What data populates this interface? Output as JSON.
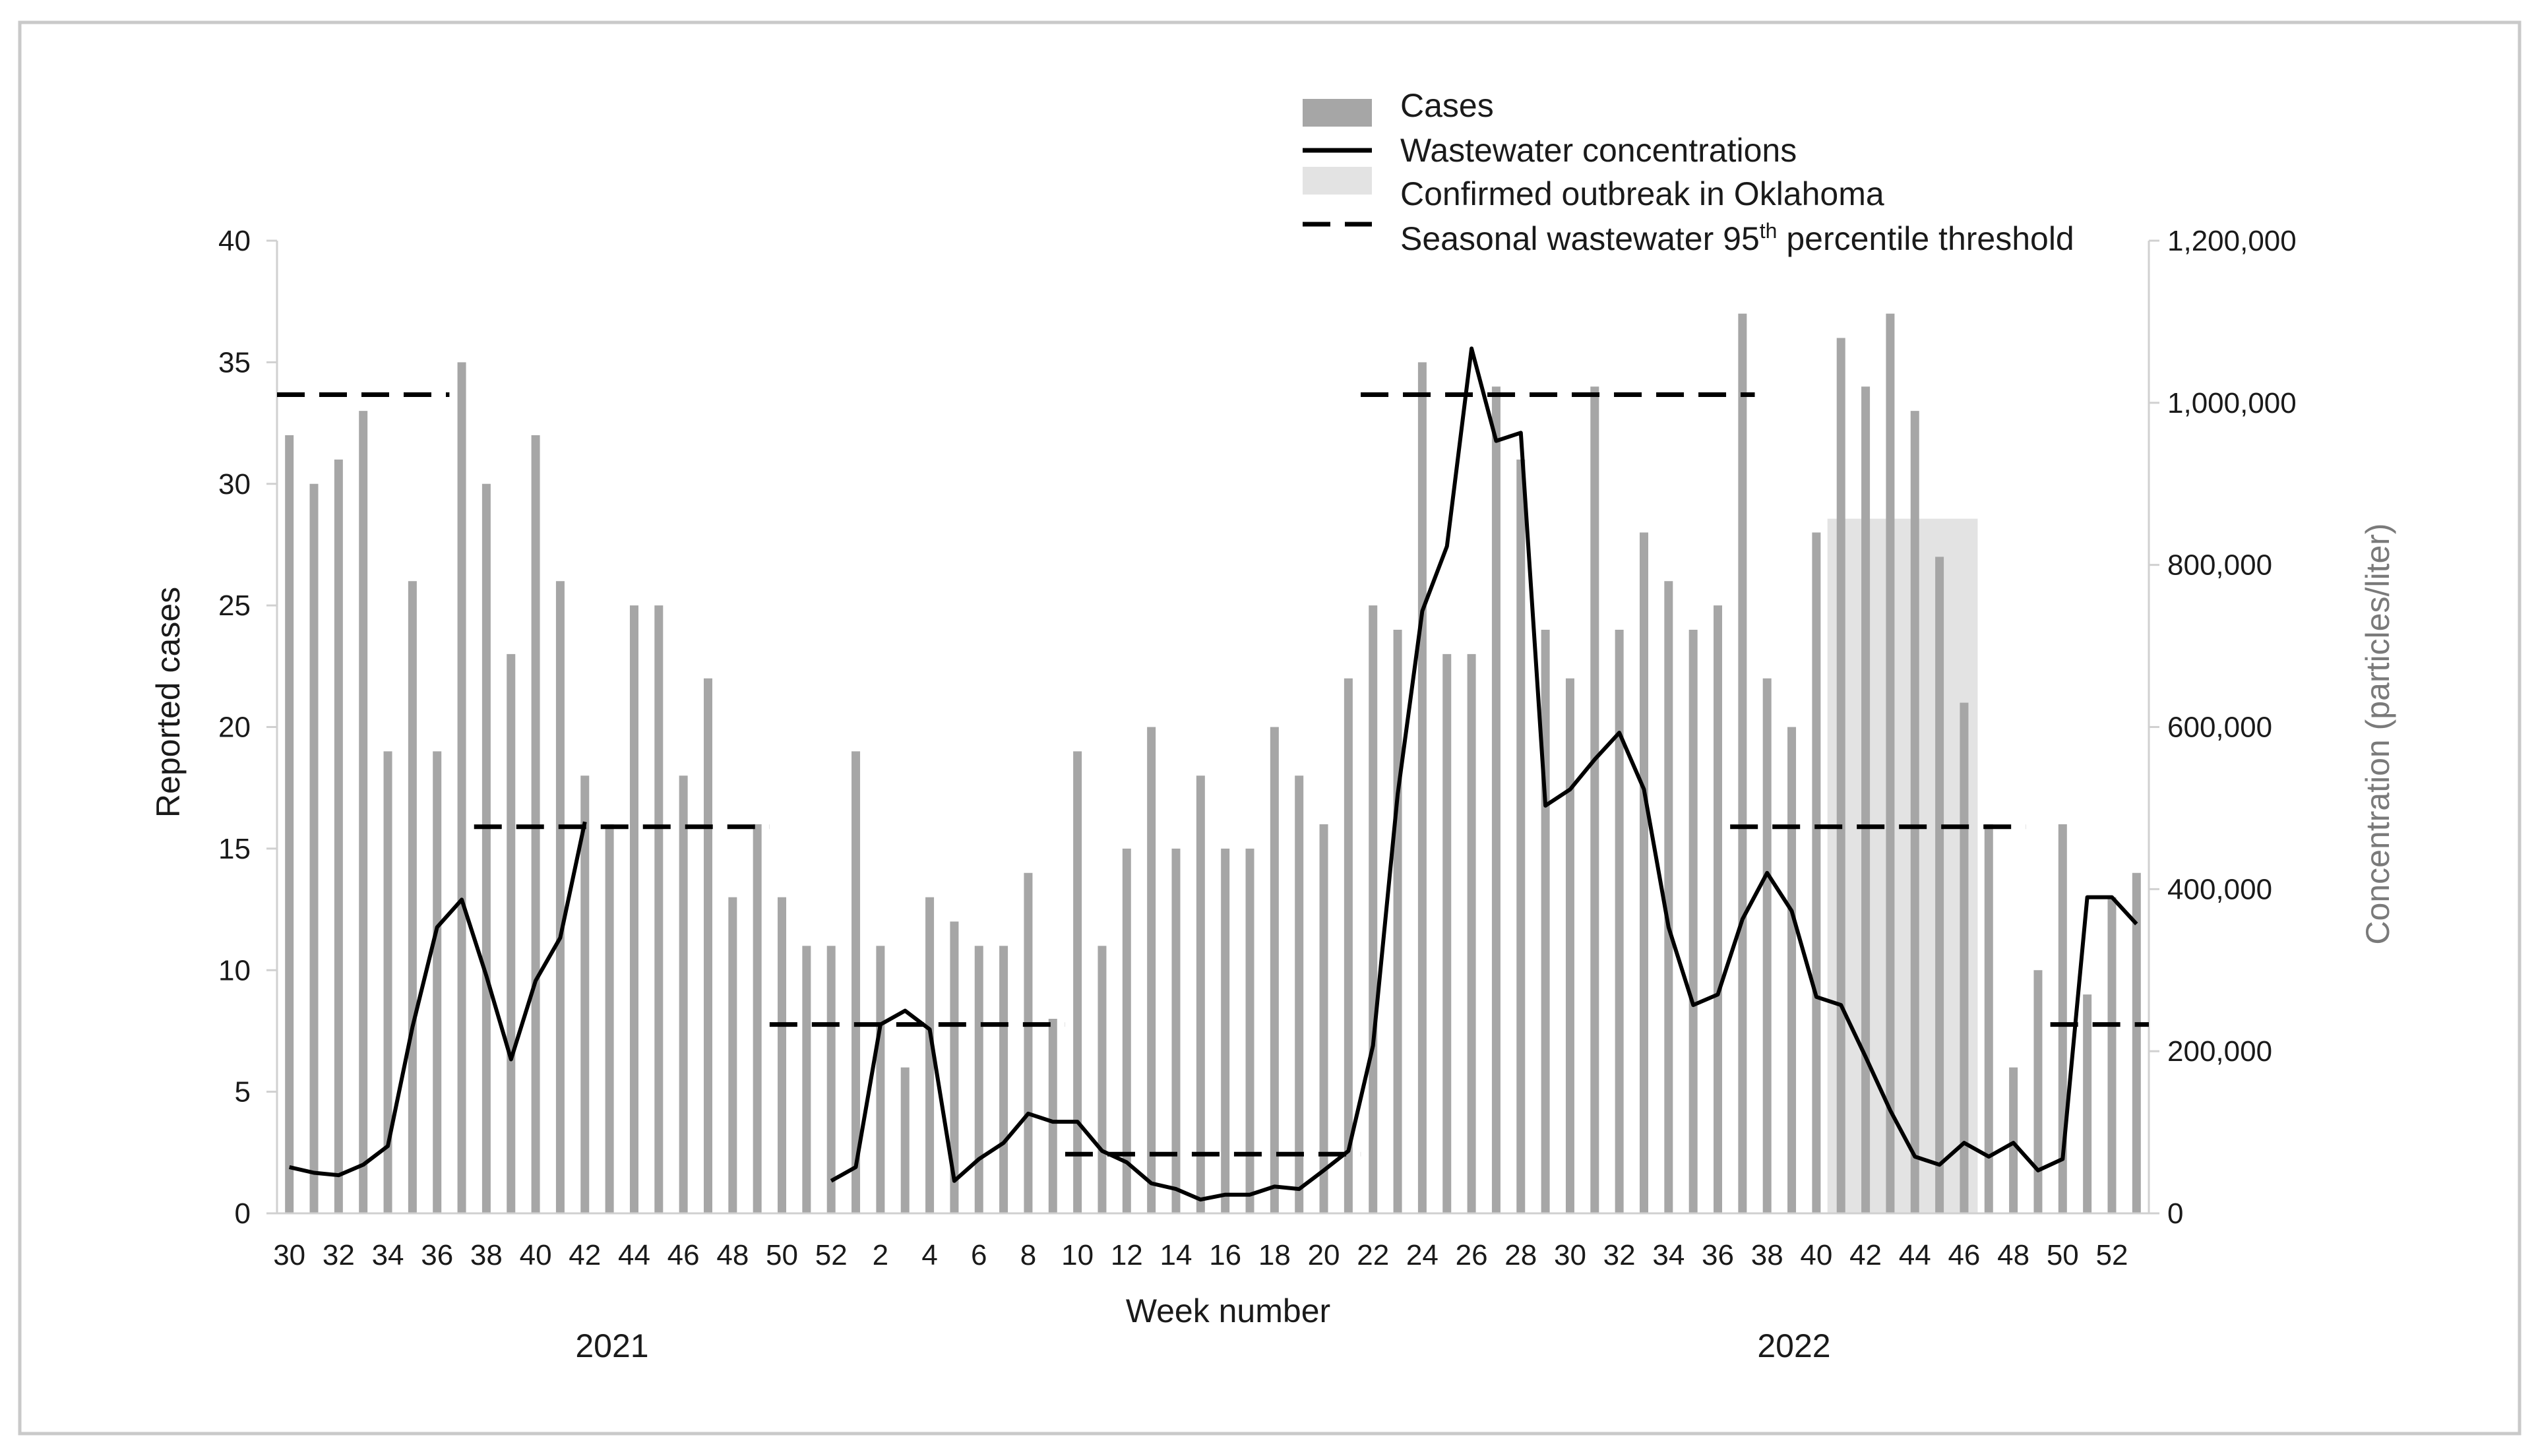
{
  "chart_data": {
    "type": "bar+line",
    "title": "",
    "xlabel": "Week number",
    "ylabel": "Reported cases",
    "y2label": "Concentration (particles/liter)",
    "ylim": [
      0,
      40
    ],
    "y2lim": [
      0,
      1200000
    ],
    "yticks": [
      "0",
      "5",
      "10",
      "15",
      "20",
      "25",
      "30",
      "35",
      "40"
    ],
    "y2ticks": [
      "0",
      "200,000",
      "400,000",
      "600,000",
      "800,000",
      "1,000,000",
      "1,200,000"
    ],
    "years": [
      "2021",
      "2022"
    ],
    "legend": {
      "cases": "Cases",
      "wastewater": "Wastewater concentrations",
      "outbreak": "Confirmed outbreak in Oklahoma",
      "threshold_prefix": "Seasonal wastewater 95",
      "threshold_sup": "th",
      "threshold_suffix": " percentile threshold"
    },
    "weeks": [
      {
        "week": 30,
        "year": 2021,
        "cases": 32,
        "conc": 57000
      },
      {
        "week": 31,
        "year": 2021,
        "cases": 30,
        "conc": 50000
      },
      {
        "week": 32,
        "year": 2021,
        "cases": 31,
        "conc": 47000
      },
      {
        "week": 33,
        "year": 2021,
        "cases": 33,
        "conc": 60000
      },
      {
        "week": 34,
        "year": 2021,
        "cases": 19,
        "conc": 83000
      },
      {
        "week": 35,
        "year": 2021,
        "cases": 26,
        "conc": 230000
      },
      {
        "week": 36,
        "year": 2021,
        "cases": 19,
        "conc": 353000
      },
      {
        "week": 37,
        "year": 2021,
        "cases": 35,
        "conc": 387000
      },
      {
        "week": 38,
        "year": 2021,
        "cases": 30,
        "conc": 293000
      },
      {
        "week": 39,
        "year": 2021,
        "cases": 23,
        "conc": 190000
      },
      {
        "week": 40,
        "year": 2021,
        "cases": 32,
        "conc": 287000
      },
      {
        "week": 41,
        "year": 2021,
        "cases": 26,
        "conc": 340000
      },
      {
        "week": 42,
        "year": 2021,
        "cases": 18,
        "conc": 483000
      },
      {
        "week": 43,
        "year": 2021,
        "cases": 16,
        "conc": null
      },
      {
        "week": 44,
        "year": 2021,
        "cases": 25,
        "conc": null
      },
      {
        "week": 45,
        "year": 2021,
        "cases": 25,
        "conc": null
      },
      {
        "week": 46,
        "year": 2021,
        "cases": 18,
        "conc": null
      },
      {
        "week": 47,
        "year": 2021,
        "cases": 22,
        "conc": null
      },
      {
        "week": 48,
        "year": 2021,
        "cases": 13,
        "conc": null
      },
      {
        "week": 49,
        "year": 2021,
        "cases": 16,
        "conc": null
      },
      {
        "week": 50,
        "year": 2021,
        "cases": 13,
        "conc": null
      },
      {
        "week": 51,
        "year": 2021,
        "cases": 11,
        "conc": null
      },
      {
        "week": 52,
        "year": 2021,
        "cases": 11,
        "conc": 40000
      },
      {
        "week": 1,
        "year": 2022,
        "cases": 19,
        "conc": 57000
      },
      {
        "week": 2,
        "year": 2022,
        "cases": 11,
        "conc": 233000
      },
      {
        "week": 3,
        "year": 2022,
        "cases": 6,
        "conc": 250000
      },
      {
        "week": 4,
        "year": 2022,
        "cases": 13,
        "conc": 227000
      },
      {
        "week": 5,
        "year": 2022,
        "cases": 12,
        "conc": 40000
      },
      {
        "week": 6,
        "year": 2022,
        "cases": 11,
        "conc": 67000
      },
      {
        "week": 7,
        "year": 2022,
        "cases": 11,
        "conc": 87000
      },
      {
        "week": 8,
        "year": 2022,
        "cases": 14,
        "conc": 123000
      },
      {
        "week": 9,
        "year": 2022,
        "cases": 8,
        "conc": 113000
      },
      {
        "week": 10,
        "year": 2022,
        "cases": 19,
        "conc": 113000
      },
      {
        "week": 11,
        "year": 2022,
        "cases": 11,
        "conc": 77000
      },
      {
        "week": 12,
        "year": 2022,
        "cases": 15,
        "conc": 63000
      },
      {
        "week": 13,
        "year": 2022,
        "cases": 20,
        "conc": 37000
      },
      {
        "week": 14,
        "year": 2022,
        "cases": 15,
        "conc": 30000
      },
      {
        "week": 15,
        "year": 2022,
        "cases": 18,
        "conc": 17000
      },
      {
        "week": 16,
        "year": 2022,
        "cases": 15,
        "conc": 23000
      },
      {
        "week": 17,
        "year": 2022,
        "cases": 15,
        "conc": 23000
      },
      {
        "week": 18,
        "year": 2022,
        "cases": 20,
        "conc": 33000
      },
      {
        "week": 19,
        "year": 2022,
        "cases": 18,
        "conc": 30000
      },
      {
        "week": 20,
        "year": 2022,
        "cases": 16,
        "conc": 53000
      },
      {
        "week": 21,
        "year": 2022,
        "cases": 22,
        "conc": 77000
      },
      {
        "week": 22,
        "year": 2022,
        "cases": 25,
        "conc": 207000
      },
      {
        "week": 23,
        "year": 2022,
        "cases": 24,
        "conc": 517000
      },
      {
        "week": 24,
        "year": 2022,
        "cases": 35,
        "conc": 743000
      },
      {
        "week": 25,
        "year": 2022,
        "cases": 23,
        "conc": 823000
      },
      {
        "week": 26,
        "year": 2022,
        "cases": 23,
        "conc": 1067000
      },
      {
        "week": 27,
        "year": 2022,
        "cases": 34,
        "conc": 953000
      },
      {
        "week": 28,
        "year": 2022,
        "cases": 31,
        "conc": 963000
      },
      {
        "week": 29,
        "year": 2022,
        "cases": 24,
        "conc": 503000
      },
      {
        "week": 30,
        "year": 2022,
        "cases": 22,
        "conc": 523000
      },
      {
        "week": 31,
        "year": 2022,
        "cases": 34,
        "conc": 560000
      },
      {
        "week": 32,
        "year": 2022,
        "cases": 24,
        "conc": 593000
      },
      {
        "week": 33,
        "year": 2022,
        "cases": 28,
        "conc": 523000
      },
      {
        "week": 34,
        "year": 2022,
        "cases": 26,
        "conc": 353000
      },
      {
        "week": 35,
        "year": 2022,
        "cases": 24,
        "conc": 257000
      },
      {
        "week": 36,
        "year": 2022,
        "cases": 25,
        "conc": 270000
      },
      {
        "week": 37,
        "year": 2022,
        "cases": 37,
        "conc": 363000
      },
      {
        "week": 38,
        "year": 2022,
        "cases": 22,
        "conc": 420000
      },
      {
        "week": 39,
        "year": 2022,
        "cases": 20,
        "conc": 373000
      },
      {
        "week": 40,
        "year": 2022,
        "cases": 28,
        "conc": 267000
      },
      {
        "week": 41,
        "year": 2022,
        "cases": 36,
        "conc": 257000
      },
      {
        "week": 42,
        "year": 2022,
        "cases": 34,
        "conc": 193000
      },
      {
        "week": 43,
        "year": 2022,
        "cases": 37,
        "conc": 127000
      },
      {
        "week": 44,
        "year": 2022,
        "cases": 33,
        "conc": 70000
      },
      {
        "week": 45,
        "year": 2022,
        "cases": 27,
        "conc": 60000
      },
      {
        "week": 46,
        "year": 2022,
        "cases": 21,
        "conc": 87000
      },
      {
        "week": 47,
        "year": 2022,
        "cases": 16,
        "conc": 70000
      },
      {
        "week": 48,
        "year": 2022,
        "cases": 6,
        "conc": 87000
      },
      {
        "week": 49,
        "year": 2022,
        "cases": 10,
        "conc": 53000
      },
      {
        "week": 50,
        "year": 2022,
        "cases": 16,
        "conc": 67000
      },
      {
        "week": 51,
        "year": 2022,
        "cases": 9,
        "conc": 390000
      },
      {
        "week": 52,
        "year": 2022,
        "cases": 13,
        "conc": 390000
      },
      {
        "week": 53,
        "year": 2022,
        "cases": 14,
        "conc": 357000
      }
    ],
    "x_tick_labels": [
      {
        "index": 0,
        "label": "30"
      },
      {
        "index": 2,
        "label": "32"
      },
      {
        "index": 4,
        "label": "34"
      },
      {
        "index": 6,
        "label": "36"
      },
      {
        "index": 8,
        "label": "38"
      },
      {
        "index": 10,
        "label": "40"
      },
      {
        "index": 12,
        "label": "42"
      },
      {
        "index": 14,
        "label": "44"
      },
      {
        "index": 16,
        "label": "46"
      },
      {
        "index": 18,
        "label": "48"
      },
      {
        "index": 20,
        "label": "50"
      },
      {
        "index": 22,
        "label": "52"
      },
      {
        "index": 24,
        "label": "2"
      },
      {
        "index": 26,
        "label": "4"
      },
      {
        "index": 28,
        "label": "6"
      },
      {
        "index": 30,
        "label": "8"
      },
      {
        "index": 32,
        "label": "10"
      },
      {
        "index": 34,
        "label": "12"
      },
      {
        "index": 36,
        "label": "14"
      },
      {
        "index": 38,
        "label": "16"
      },
      {
        "index": 40,
        "label": "18"
      },
      {
        "index": 42,
        "label": "20"
      },
      {
        "index": 44,
        "label": "22"
      },
      {
        "index": 46,
        "label": "24"
      },
      {
        "index": 48,
        "label": "26"
      },
      {
        "index": 50,
        "label": "28"
      },
      {
        "index": 52,
        "label": "30"
      },
      {
        "index": 54,
        "label": "32"
      },
      {
        "index": 56,
        "label": "34"
      },
      {
        "index": 58,
        "label": "36"
      },
      {
        "index": 60,
        "label": "38"
      },
      {
        "index": 62,
        "label": "40"
      },
      {
        "index": 64,
        "label": "42"
      },
      {
        "index": 66,
        "label": "44"
      },
      {
        "index": 68,
        "label": "46"
      },
      {
        "index": 70,
        "label": "48"
      },
      {
        "index": 72,
        "label": "50"
      },
      {
        "index": 74,
        "label": "52"
      }
    ],
    "thresholds": [
      {
        "start_index": 0,
        "end_index": 6,
        "value": 1010000
      },
      {
        "start_index": 8,
        "end_index": 19,
        "value": 477000
      },
      {
        "start_index": 20,
        "end_index": 31,
        "value": 233000
      },
      {
        "start_index": 32,
        "end_index": 43,
        "value": 73000
      },
      {
        "start_index": 44,
        "end_index": 59,
        "value": 1010000
      },
      {
        "start_index": 59,
        "end_index": 70,
        "value": 477000
      },
      {
        "start_index": 72,
        "end_index": 75,
        "value": 233000
      }
    ],
    "outbreak": {
      "start_index": 63,
      "end_index": 68,
      "value": 857000
    }
  },
  "colors": {
    "bar": "#a6a6a6",
    "line": "#000000",
    "outbreak": "#e3e3e3",
    "axis": "#d0d0d0",
    "right_axis_text": "#7a7a7a"
  }
}
